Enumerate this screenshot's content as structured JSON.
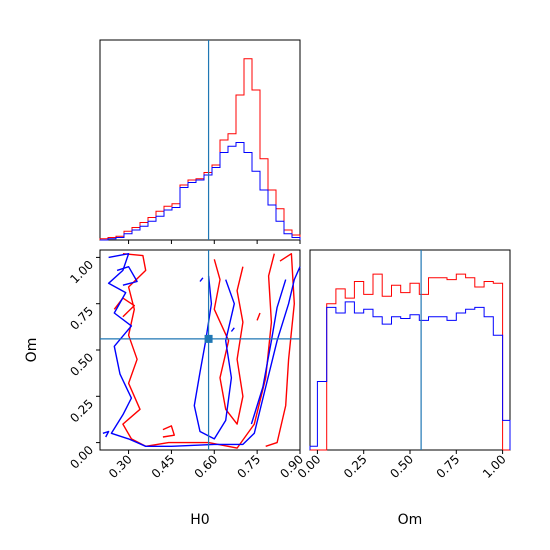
{
  "chart_data": {
    "type": "corner",
    "parameters": [
      "H0",
      "Om"
    ],
    "truth": {
      "H0": 0.58,
      "Om": 0.56
    },
    "colors": {
      "run1": "#ff0000",
      "run2": "#0000ff",
      "truth": "#1f77b4"
    },
    "hist_H0": {
      "xlim": [
        0.2,
        0.9
      ],
      "bins": [
        0.2,
        0.228,
        0.256,
        0.284,
        0.312,
        0.34,
        0.368,
        0.396,
        0.424,
        0.452,
        0.48,
        0.508,
        0.536,
        0.564,
        0.592,
        0.62,
        0.648,
        0.676,
        0.704,
        0.732,
        0.76,
        0.788,
        0.816,
        0.844,
        0.872,
        0.9
      ],
      "series": [
        {
          "color_key": "run1",
          "values": [
            1,
            2,
            3,
            7,
            10,
            14,
            18,
            23,
            27,
            29,
            44,
            48,
            49,
            54,
            60,
            80,
            85,
            116,
            145,
            120,
            65,
            40,
            25,
            8,
            4
          ]
        },
        {
          "color_key": "run2",
          "values": [
            0,
            1,
            2,
            5,
            8,
            11,
            15,
            19,
            24,
            26,
            42,
            46,
            48,
            52,
            58,
            70,
            75,
            78,
            70,
            55,
            40,
            28,
            15,
            5,
            2
          ]
        }
      ],
      "ylim": [
        0,
        160
      ]
    },
    "hist_Om": {
      "xlim": [
        -0.04,
        1.04
      ],
      "bins": [
        -0.04,
        0.0,
        0.05,
        0.1,
        0.15,
        0.2,
        0.25,
        0.3,
        0.35,
        0.4,
        0.45,
        0.5,
        0.55,
        0.6,
        0.65,
        0.7,
        0.75,
        0.8,
        0.85,
        0.9,
        0.95,
        1.0,
        1.04
      ],
      "series": [
        {
          "color_key": "run1",
          "values": [
            0,
            0,
            0.79,
            0.87,
            0.82,
            0.91,
            0.84,
            0.95,
            0.83,
            0.89,
            0.85,
            0.9,
            0.84,
            0.93,
            0.93,
            0.92,
            0.95,
            0.93,
            0.88,
            0.91,
            0.9,
            0
          ]
        },
        {
          "color_key": "run2",
          "values": [
            0.02,
            0.37,
            0.77,
            0.74,
            0.8,
            0.74,
            0.76,
            0.72,
            0.68,
            0.72,
            0.71,
            0.73,
            0.7,
            0.72,
            0.72,
            0.7,
            0.74,
            0.76,
            0.77,
            0.72,
            0.62,
            0.16
          ]
        }
      ],
      "ylim": [
        0,
        1.08
      ]
    },
    "scatter_contours": {
      "xlim": [
        0.2,
        0.9
      ],
      "ylim": [
        -0.04,
        1.04
      ],
      "series": [
        {
          "color_key": "run1",
          "contours": [
            [
              [
                0.28,
                1.02
              ],
              [
                0.35,
                1.01
              ],
              [
                0.36,
                0.93
              ],
              [
                0.3,
                0.84
              ],
              [
                0.32,
                0.72
              ],
              [
                0.3,
                0.58
              ],
              [
                0.33,
                0.45
              ],
              [
                0.3,
                0.32
              ],
              [
                0.34,
                0.18
              ],
              [
                0.28,
                0.1
              ],
              [
                0.31,
                0.02
              ],
              [
                0.36,
                -0.02
              ],
              [
                0.44,
                0.0
              ],
              [
                0.58,
                0.0
              ],
              [
                0.68,
                -0.03
              ],
              [
                0.74,
                0.1
              ],
              [
                0.78,
                0.35
              ],
              [
                0.8,
                0.65
              ],
              [
                0.79,
                0.9
              ],
              [
                0.81,
                1.02
              ]
            ],
            [
              [
                0.83,
                0.98
              ],
              [
                0.87,
                1.02
              ],
              [
                0.88,
                0.75
              ],
              [
                0.86,
                0.45
              ],
              [
                0.85,
                0.2
              ],
              [
                0.82,
                0.0
              ],
              [
                0.78,
                -0.02
              ]
            ],
            [
              [
                0.6,
                0.99
              ],
              [
                0.62,
                0.88
              ],
              [
                0.6,
                0.72
              ],
              [
                0.65,
                0.55
              ],
              [
                0.62,
                0.35
              ],
              [
                0.64,
                0.18
              ],
              [
                0.68,
                0.1
              ],
              [
                0.7,
                0.25
              ],
              [
                0.68,
                0.45
              ],
              [
                0.7,
                0.65
              ],
              [
                0.68,
                0.82
              ],
              [
                0.7,
                0.95
              ]
            ],
            [
              [
                0.25,
                0.72
              ],
              [
                0.28,
                0.78
              ],
              [
                0.32,
                0.74
              ],
              [
                0.28,
                0.68
              ]
            ],
            [
              [
                0.42,
                0.03
              ],
              [
                0.46,
                0.04
              ],
              [
                0.45,
                0.09
              ],
              [
                0.42,
                0.07
              ]
            ],
            [
              [
                0.75,
                0.66
              ],
              [
                0.76,
                0.7
              ]
            ]
          ]
        },
        {
          "color_key": "run2",
          "contours": [
            [
              [
                0.23,
                1.0
              ],
              [
                0.3,
                1.02
              ],
              [
                0.28,
                0.93
              ],
              [
                0.23,
                0.86
              ],
              [
                0.29,
                0.81
              ],
              [
                0.25,
                0.7
              ],
              [
                0.31,
                0.63
              ],
              [
                0.25,
                0.52
              ],
              [
                0.27,
                0.37
              ],
              [
                0.31,
                0.24
              ],
              [
                0.28,
                0.15
              ],
              [
                0.24,
                0.05
              ],
              [
                0.3,
                0.02
              ],
              [
                0.36,
                -0.02
              ],
              [
                0.45,
                -0.02
              ],
              [
                0.6,
                -0.01
              ],
              [
                0.7,
                -0.01
              ],
              [
                0.74,
                0.05
              ],
              [
                0.78,
                0.3
              ],
              [
                0.82,
                0.55
              ],
              [
                0.86,
                0.75
              ],
              [
                0.88,
                0.88
              ],
              [
                0.9,
                0.95
              ]
            ],
            [
              [
                0.85,
                0.88
              ],
              [
                0.82,
                0.73
              ],
              [
                0.8,
                0.55
              ],
              [
                0.77,
                0.3
              ],
              [
                0.73,
                0.1
              ]
            ],
            [
              [
                0.58,
                0.9
              ],
              [
                0.59,
                0.75
              ],
              [
                0.57,
                0.55
              ],
              [
                0.55,
                0.38
              ],
              [
                0.53,
                0.2
              ],
              [
                0.55,
                0.06
              ],
              [
                0.6,
                0.02
              ],
              [
                0.64,
                0.12
              ],
              [
                0.66,
                0.35
              ],
              [
                0.64,
                0.55
              ],
              [
                0.67,
                0.75
              ],
              [
                0.64,
                0.88
              ]
            ],
            [
              [
                0.26,
                0.93
              ],
              [
                0.3,
                0.95
              ],
              [
                0.33,
                0.87
              ],
              [
                0.28,
                0.85
              ]
            ],
            [
              [
                0.55,
                0.87
              ],
              [
                0.56,
                0.89
              ]
            ],
            [
              [
                0.66,
                0.6
              ],
              [
                0.67,
                0.62
              ]
            ],
            [
              [
                0.21,
                0.05
              ],
              [
                0.23,
                0.06
              ],
              [
                0.22,
                0.03
              ]
            ]
          ]
        }
      ]
    },
    "xlabel_H0": "H0",
    "xlabel_Om": "Om",
    "ylabel_Om": "Om",
    "ticks_H0": [
      "0.30",
      "0.45",
      "0.60",
      "0.75",
      "0.90"
    ],
    "ticks_H0_values": [
      0.3,
      0.45,
      0.6,
      0.75,
      0.9
    ],
    "ticks_Om": [
      "0.00",
      "0.25",
      "0.50",
      "0.75",
      "1.00"
    ],
    "ticks_Om_values": [
      0.0,
      0.25,
      0.5,
      0.75,
      1.0
    ],
    "grid": false,
    "legend": "none"
  }
}
